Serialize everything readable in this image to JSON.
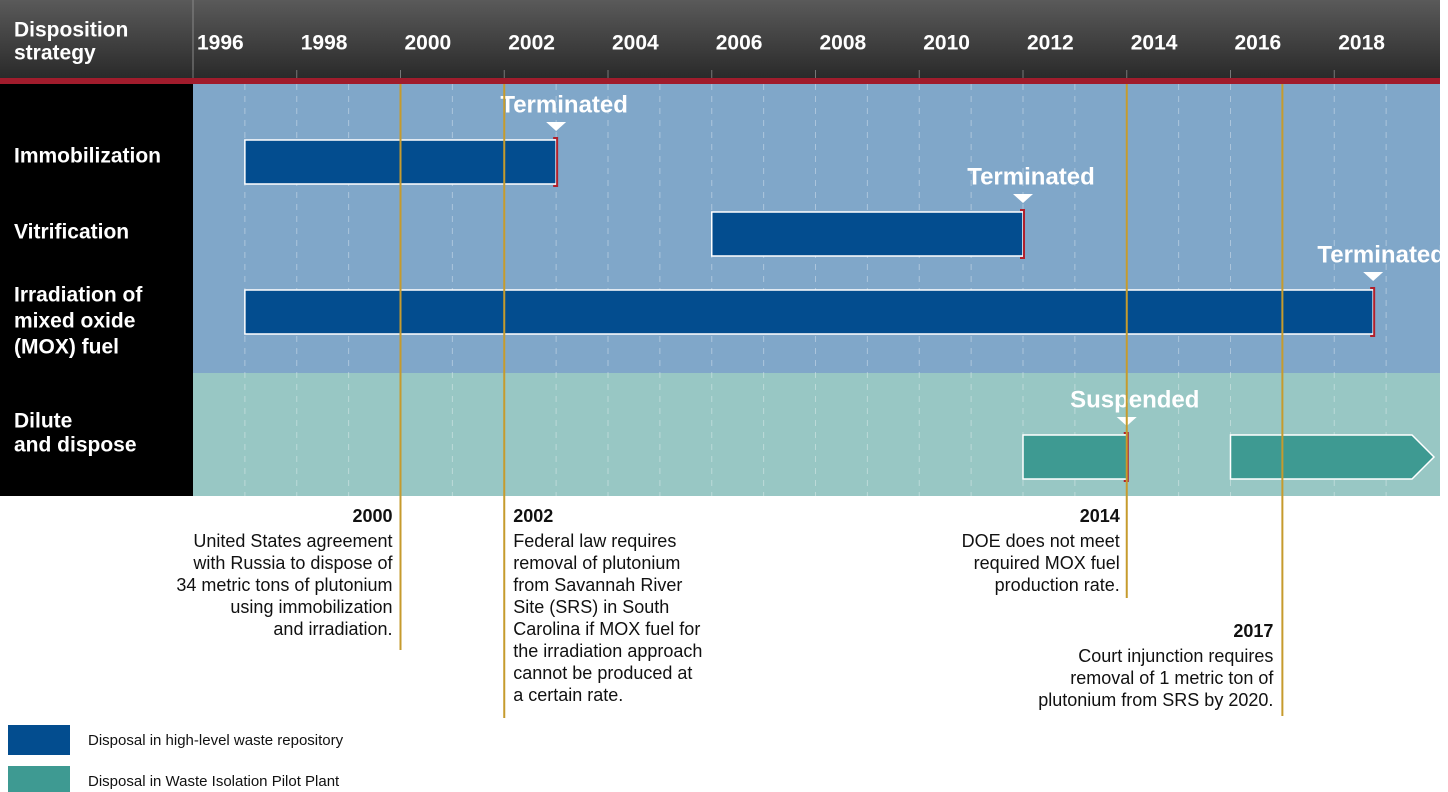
{
  "header": {
    "label": [
      "Disposition",
      "strategy"
    ]
  },
  "axis": {
    "xlim": [
      1996,
      2020
    ],
    "xticks": [
      1996,
      1998,
      2000,
      2002,
      2004,
      2006,
      2008,
      2010,
      2012,
      2014,
      2016,
      2018
    ]
  },
  "rows": [
    {
      "label": [
        "Immobilization"
      ],
      "bars": [
        {
          "start": 1997,
          "end": 2003,
          "status": "Terminated",
          "color": "#034d8f"
        }
      ]
    },
    {
      "label": [
        "Vitrification"
      ],
      "bars": [
        {
          "start": 2006,
          "end": 2012,
          "status": "Terminated",
          "color": "#034d8f"
        }
      ]
    },
    {
      "label": [
        "Irradiation of",
        "mixed oxide",
        "(MOX) fuel"
      ],
      "bars": [
        {
          "start": 1997,
          "end": 2018.75,
          "status": "Terminated",
          "color": "#034d8f"
        }
      ]
    },
    {
      "label": [
        "Dilute",
        "and dispose"
      ],
      "bars": [
        {
          "start": 2012,
          "end": 2014,
          "status": "Suspended",
          "color": "#3e9a92"
        },
        {
          "start": 2016,
          "end": 2020,
          "color": "#3e9a92"
        }
      ]
    }
  ],
  "events": [
    {
      "year": 2000,
      "text": [
        "United States agreement",
        "with Russia to dispose of",
        "34 metric tons of plutonium",
        "using immobilization",
        "and irradiation."
      ]
    },
    {
      "year": 2002,
      "text": [
        "Federal law requires",
        "removal of plutonium",
        "from Savannah River",
        "Site (SRS) in South",
        "Carolina if MOX fuel for",
        "the irradiation approach",
        "cannot be produced at",
        "a certain rate."
      ]
    },
    {
      "year": 2014,
      "text": [
        "DOE does not meet",
        "required MOX fuel",
        "production rate."
      ]
    },
    {
      "year": 2017,
      "text": [
        "Court injunction requires",
        "removal of 1 metric ton of",
        "plutonium from SRS by 2020."
      ]
    }
  ],
  "legend": [
    {
      "label": "Disposal in high-level waste repository",
      "color": "#034d8f"
    },
    {
      "label": "Disposal in Waste Isolation Pilot Plant",
      "color": "#3e9a92"
    }
  ]
}
